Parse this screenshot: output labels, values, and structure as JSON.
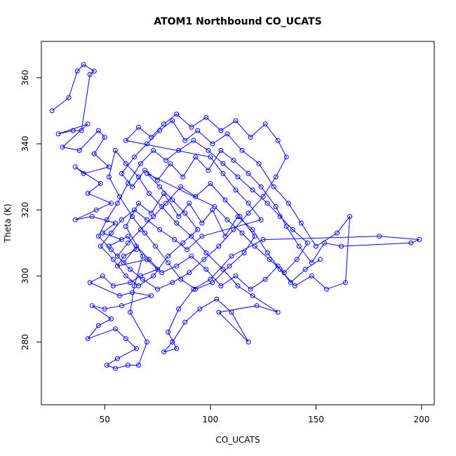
{
  "chart_data": {
    "type": "scatter",
    "title": "ATOM1 Northbound CO_UCATS",
    "xlabel": "CO_UCATS",
    "ylabel": "Theta (K)",
    "xlim": [
      20,
      206
    ],
    "ylim": [
      261,
      371
    ],
    "xticks": [
      50,
      100,
      150,
      200
    ],
    "yticks": [
      280,
      300,
      320,
      340,
      360
    ],
    "grid": false,
    "legend": "none",
    "connected": true,
    "color": "#0000ff",
    "series": [
      {
        "points": [
          [
            25,
            350
          ],
          [
            33,
            354
          ],
          [
            37,
            362
          ],
          [
            40,
            364
          ],
          [
            45,
            362
          ],
          [
            43,
            361
          ],
          [
            39,
            344
          ],
          [
            35,
            344
          ],
          [
            28,
            343
          ],
          [
            42,
            346
          ],
          [
            30,
            339
          ],
          [
            38,
            338
          ],
          [
            47,
            344
          ],
          [
            50,
            342
          ],
          [
            45,
            337
          ],
          [
            52,
            333
          ],
          [
            40,
            331
          ],
          [
            36,
            333
          ],
          [
            48,
            328
          ],
          [
            42,
            325
          ],
          [
            53,
            322
          ],
          [
            46,
            320
          ],
          [
            36,
            317
          ],
          [
            44,
            318
          ],
          [
            55,
            316
          ],
          [
            49,
            313
          ],
          [
            58,
            311
          ],
          [
            52,
            309
          ],
          [
            61,
            312
          ],
          [
            65,
            308
          ],
          [
            59,
            306
          ],
          [
            56,
            303
          ],
          [
            70,
            305
          ],
          [
            75,
            302
          ],
          [
            67,
            300
          ],
          [
            62,
            298
          ],
          [
            54,
            297
          ],
          [
            49,
            300
          ],
          [
            43,
            298
          ],
          [
            57,
            294
          ],
          [
            63,
            295
          ],
          [
            72,
            294
          ],
          [
            58,
            291
          ],
          [
            50,
            290
          ],
          [
            44,
            291
          ],
          [
            53,
            287
          ],
          [
            47,
            285
          ],
          [
            42,
            281
          ],
          [
            55,
            284
          ],
          [
            60,
            281
          ],
          [
            65,
            278
          ],
          [
            56,
            275
          ],
          [
            51,
            273
          ],
          [
            55,
            272
          ],
          [
            61,
            273
          ],
          [
            66,
            273
          ],
          [
            70,
            280
          ],
          [
            62,
            289
          ],
          [
            64,
            297
          ],
          [
            68,
            306
          ],
          [
            60,
            315
          ],
          [
            66,
            322
          ],
          [
            72,
            319
          ],
          [
            78,
            325
          ],
          [
            85,
            318
          ],
          [
            90,
            322
          ],
          [
            96,
            316
          ],
          [
            101,
            320
          ],
          [
            107,
            312
          ],
          [
            113,
            318
          ],
          [
            120,
            314
          ],
          [
            127,
            307
          ],
          [
            133,
            302
          ],
          [
            140,
            297
          ],
          [
            148,
            300
          ],
          [
            155,
            296
          ],
          [
            164,
            298
          ],
          [
            166,
            318
          ],
          [
            160,
            313
          ],
          [
            150,
            309
          ],
          [
            143,
            316
          ],
          [
            137,
            322
          ],
          [
            130,
            327
          ],
          [
            123,
            334
          ],
          [
            115,
            338
          ],
          [
            108,
            343
          ],
          [
            101,
            340
          ],
          [
            94,
            344
          ],
          [
            88,
            341
          ],
          [
            82,
            347
          ],
          [
            76,
            344
          ],
          [
            70,
            340
          ],
          [
            64,
            336
          ],
          [
            58,
            331
          ],
          [
            63,
            327
          ],
          [
            69,
            332
          ],
          [
            75,
            329
          ],
          [
            81,
            334
          ],
          [
            87,
            330
          ],
          [
            93,
            336
          ],
          [
            99,
            332
          ],
          [
            105,
            338
          ],
          [
            111,
            335
          ],
          [
            118,
            331
          ],
          [
            124,
            327
          ],
          [
            131,
            321
          ],
          [
            136,
            315
          ],
          [
            142,
            309
          ],
          [
            148,
            304
          ],
          [
            154,
            310
          ],
          [
            162,
            309
          ],
          [
            195,
            310
          ],
          [
            199,
            311
          ],
          [
            180,
            312
          ],
          [
            125,
            311
          ],
          [
            110,
            306
          ],
          [
            100,
            299
          ],
          [
            92,
            296
          ],
          [
            85,
            290
          ],
          [
            80,
            283
          ],
          [
            84,
            278
          ],
          [
            78,
            277
          ],
          [
            82,
            280
          ],
          [
            88,
            286
          ],
          [
            95,
            290
          ],
          [
            103,
            293
          ],
          [
            110,
            289
          ],
          [
            118,
            280
          ],
          [
            104,
            289
          ],
          [
            122,
            291
          ],
          [
            132,
            289
          ],
          [
            120,
            294
          ],
          [
            113,
            297
          ],
          [
            106,
            302
          ],
          [
            98,
            307
          ],
          [
            91,
            312
          ],
          [
            84,
            316
          ],
          [
            77,
            321
          ],
          [
            71,
            325
          ],
          [
            66,
            330
          ],
          [
            60,
            334
          ],
          [
            55,
            338
          ],
          [
            52,
            330
          ],
          [
            57,
            324
          ],
          [
            63,
            318
          ],
          [
            69,
            313
          ],
          [
            74,
            309
          ],
          [
            80,
            304
          ],
          [
            86,
            299
          ],
          [
            93,
            296
          ],
          [
            101,
            298
          ],
          [
            109,
            303
          ],
          [
            116,
            307
          ],
          [
            121,
            312
          ],
          [
            114,
            318
          ],
          [
            107,
            323
          ],
          [
            100,
            328
          ],
          [
            93,
            324
          ],
          [
            86,
            327
          ],
          [
            79,
            322
          ],
          [
            73,
            318
          ],
          [
            67,
            314
          ],
          [
            61,
            310
          ],
          [
            56,
            306
          ],
          [
            62,
            302
          ],
          [
            68,
            299
          ],
          [
            75,
            296
          ],
          [
            82,
            298
          ],
          [
            90,
            301
          ],
          [
            97,
            305
          ],
          [
            104,
            309
          ],
          [
            111,
            314
          ],
          [
            118,
            319
          ],
          [
            125,
            324
          ],
          [
            131,
            330
          ],
          [
            136,
            336
          ],
          [
            132,
            341
          ],
          [
            126,
            346
          ],
          [
            119,
            342
          ],
          [
            112,
            347
          ],
          [
            105,
            344
          ],
          [
            98,
            348
          ],
          [
            91,
            345
          ],
          [
            84,
            349
          ],
          [
            78,
            346
          ],
          [
            72,
            342
          ],
          [
            66,
            345
          ],
          [
            60,
            341
          ],
          [
            100,
            336
          ],
          [
            106,
            331
          ],
          [
            112,
            326
          ],
          [
            118,
            322
          ],
          [
            124,
            317
          ],
          [
            96,
            312
          ],
          [
            89,
            308
          ],
          [
            83,
            311
          ],
          [
            76,
            314
          ],
          [
            70,
            317
          ],
          [
            64,
            320
          ],
          [
            58,
            317
          ],
          [
            53,
            313
          ],
          [
            48,
            309
          ],
          [
            54,
            305
          ],
          [
            60,
            300
          ],
          [
            66,
            297
          ],
          [
            73,
            300
          ],
          [
            80,
            306
          ],
          [
            87,
            310
          ],
          [
            94,
            314
          ],
          [
            88,
            319
          ],
          [
            82,
            323
          ],
          [
            76,
            327
          ],
          [
            70,
            331
          ],
          [
            102,
            321
          ],
          [
            108,
            317
          ],
          [
            115,
            313
          ],
          [
            121,
            309
          ],
          [
            128,
            305
          ],
          [
            135,
            301
          ],
          [
            141,
            305
          ],
          [
            146,
            310
          ],
          [
            139,
            314
          ],
          [
            133,
            318
          ],
          [
            127,
            322
          ],
          [
            120,
            326
          ],
          [
            113,
            330
          ],
          [
            106,
            334
          ],
          [
            99,
            338
          ],
          [
            92,
            341
          ],
          [
            85,
            338
          ],
          [
            79,
            335
          ],
          [
            73,
            338
          ],
          [
            67,
            334
          ],
          [
            61,
            328
          ],
          [
            56,
            322
          ],
          [
            51,
            317
          ],
          [
            47,
            312
          ],
          [
            53,
            308
          ],
          [
            59,
            304
          ],
          [
            65,
            309
          ],
          [
            71,
            305
          ],
          [
            77,
            301
          ],
          [
            84,
            303
          ],
          [
            91,
            306
          ],
          [
            98,
            302
          ],
          [
            105,
            297
          ],
          [
            112,
            300
          ],
          [
            119,
            296
          ],
          [
            126,
            299
          ],
          [
            132,
            303
          ],
          [
            138,
            298
          ],
          [
            145,
            302
          ],
          [
            152,
            305
          ]
        ]
      }
    ]
  }
}
